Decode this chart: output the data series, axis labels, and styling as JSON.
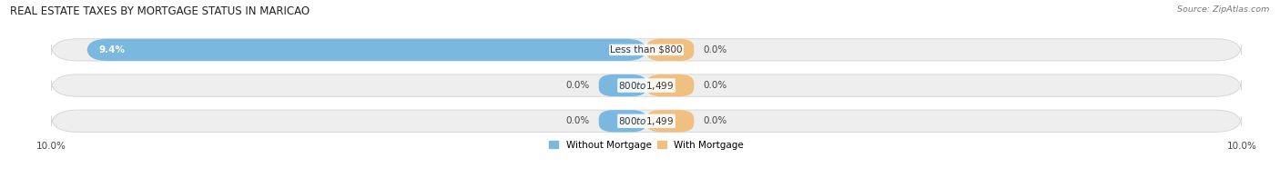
{
  "title": "REAL ESTATE TAXES BY MORTGAGE STATUS IN MARICAO",
  "source": "Source: ZipAtlas.com",
  "categories": [
    "Less than $800",
    "$800 to $1,499",
    "$800 to $1,499"
  ],
  "without_mortgage": [
    9.4,
    0.0,
    0.0
  ],
  "with_mortgage": [
    0.0,
    0.0,
    0.0
  ],
  "xlim_left": -10.0,
  "xlim_right": 10.0,
  "color_without": "#7ab8e0",
  "color_with": "#f0c080",
  "bg_bar": "#eeeeee",
  "bg_bar_edge": "#d8d8d8",
  "legend_without": "Without Mortgage",
  "legend_with": "With Mortgage",
  "bar_height": 0.62,
  "title_fontsize": 8.5,
  "label_fontsize": 7.5,
  "axis_fontsize": 7.5,
  "cat_label_fontsize": 7.5,
  "small_bar_width": 0.8
}
